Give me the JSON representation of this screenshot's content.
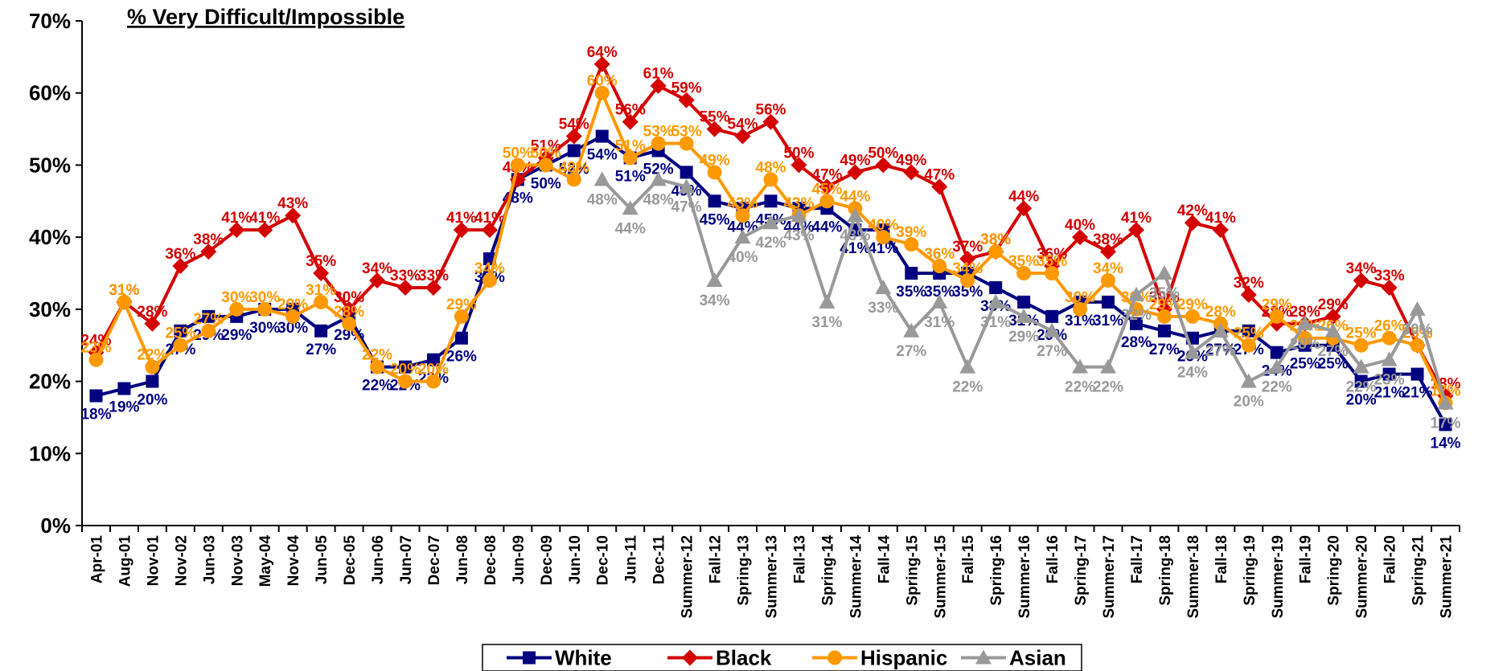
{
  "chart_data": {
    "type": "line",
    "title": "% Very Difficult/Impossible",
    "categories": [
      "Apr-01",
      "Aug-01",
      "Nov-01",
      "Nov-02",
      "Jun-03",
      "Nov-03",
      "May-04",
      "Nov-04",
      "Jun-05",
      "Dec-05",
      "Jun-06",
      "Jun-07",
      "Dec-07",
      "Jun-08",
      "Dec-08",
      "Jun-09",
      "Dec-09",
      "Jun-10",
      "Dec-10",
      "Jun-11",
      "Dec-11",
      "Summer-12",
      "Fall-12",
      "Spring-13",
      "Summer-13",
      "Fall-13",
      "Spring-14",
      "Summer-14",
      "Fall-14",
      "Spring-15",
      "Summer-15",
      "Fall-15",
      "Spring-16",
      "Summer-16",
      "Fall-16",
      "Spring-17",
      "Summer-17",
      "Fall-17",
      "Spring-18",
      "Summer-18",
      "Fall-18",
      "Spring-19",
      "Summer-19",
      "Fall-19",
      "Spring-20",
      "Summer-20",
      "Fall-20",
      "Spring-21",
      "Summer-21"
    ],
    "series": [
      {
        "name": "White",
        "color": "#000080",
        "marker": "square",
        "values": [
          18,
          19,
          20,
          27,
          29,
          29,
          30,
          30,
          27,
          29,
          22,
          22,
          23,
          26,
          37,
          48,
          50,
          52,
          54,
          51,
          52,
          49,
          45,
          44,
          45,
          44,
          44,
          41,
          41,
          35,
          35,
          35,
          33,
          31,
          29,
          31,
          31,
          28,
          27,
          26,
          27,
          27,
          24,
          25,
          25,
          20,
          21,
          21,
          14
        ],
        "value_labels": [
          "18%",
          "19%",
          "20%",
          "27%",
          "29%",
          "29%",
          "30%",
          "30%",
          "27%",
          "29%",
          "22%",
          "22%",
          "23%",
          "26%",
          "37%",
          "48%",
          "50%",
          "52%",
          "54%",
          "51%",
          "52%",
          "49%",
          "45%",
          "44%",
          "45%",
          "44%",
          "44%",
          "41%",
          "41%",
          "35%",
          "35%",
          "35%",
          "33%",
          "31%",
          "29%",
          "31%",
          "31%",
          "28%",
          "27%",
          "26%",
          "27%",
          "27%",
          "24%",
          "25%",
          "25%",
          "20%",
          "21%",
          "21%",
          "14%"
        ]
      },
      {
        "name": "Black",
        "color": "#d40000",
        "marker": "diamond",
        "values": [
          24,
          31,
          28,
          36,
          38,
          41,
          41,
          43,
          35,
          30,
          34,
          33,
          33,
          41,
          41,
          48,
          51,
          54,
          64,
          56,
          61,
          59,
          55,
          54,
          56,
          50,
          47,
          49,
          50,
          49,
          47,
          37,
          38,
          44,
          36,
          40,
          38,
          41,
          30,
          42,
          41,
          32,
          28,
          28,
          29,
          34,
          33,
          25,
          18
        ],
        "value_labels": [
          "24%",
          "31%",
          "28%",
          "36%",
          "38%",
          "41%",
          "41%",
          "43%",
          "35%",
          "30%",
          "34%",
          "33%",
          "33%",
          "41%",
          "41%",
          "48%",
          "51%",
          "54%",
          "64%",
          "56%",
          "61%",
          "59%",
          "55%",
          "54%",
          "56%",
          "50%",
          "47%",
          "49%",
          "50%",
          "49%",
          "47%",
          "37%",
          "38%",
          "44%",
          "36%",
          "40%",
          "38%",
          "41%",
          "30%",
          "42%",
          "41%",
          "32%",
          "28%",
          "28%",
          "29%",
          "34%",
          "33%",
          "25%",
          "18%"
        ]
      },
      {
        "name": "Hispanic",
        "color": "#ff9900",
        "marker": "circle",
        "values": [
          23,
          31,
          22,
          25,
          27,
          30,
          30,
          29,
          31,
          28,
          22,
          20,
          20,
          29,
          34,
          50,
          50,
          48,
          60,
          51,
          53,
          53,
          49,
          43,
          48,
          43,
          45,
          44,
          40,
          39,
          36,
          34,
          38,
          35,
          35,
          30,
          34,
          30,
          29,
          29,
          28,
          25,
          29,
          26,
          26,
          25,
          26,
          25,
          17
        ],
        "value_labels": [
          "23%",
          "31%",
          "22%",
          "25%",
          "27%",
          "30%",
          "30%",
          "29%",
          "31%",
          "28%",
          "22%",
          "20%",
          "20%",
          "29%",
          "34%",
          "50%",
          "50%",
          "48%",
          "60%",
          "51%",
          "53%",
          "53%",
          "49%",
          "43%",
          "48%",
          "43%",
          "45%",
          "44%",
          "40%",
          "39%",
          "36%",
          "34%",
          "38%",
          "35%",
          "35%",
          "30%",
          "34%",
          "30%",
          "29%",
          "29%",
          "28%",
          "25%",
          "29%",
          "26%",
          "26%",
          "25%",
          "26%",
          "25%",
          "17%"
        ]
      },
      {
        "name": "Asian",
        "color": "#999999",
        "marker": "triangle",
        "values": [
          null,
          null,
          null,
          null,
          null,
          null,
          null,
          null,
          null,
          null,
          null,
          null,
          null,
          null,
          null,
          null,
          null,
          null,
          48,
          44,
          48,
          47,
          34,
          40,
          42,
          43,
          31,
          43,
          33,
          27,
          31,
          22,
          31,
          29,
          27,
          22,
          22,
          32,
          35,
          24,
          27,
          20,
          22,
          28,
          27,
          22,
          23,
          30,
          17
        ],
        "value_labels": [
          null,
          null,
          null,
          null,
          null,
          null,
          null,
          null,
          null,
          null,
          null,
          null,
          null,
          null,
          null,
          null,
          null,
          null,
          "48%",
          "44%",
          "48%",
          "47%",
          "34%",
          "40%",
          "42%",
          "43%",
          "31%",
          "43%",
          "33%",
          "27%",
          "31%",
          "22%",
          "31%",
          "29%",
          "27%",
          "22%",
          "22%",
          "32%",
          "35%",
          "24%",
          "27%",
          "20%",
          "22%",
          "28%",
          "27%",
          "22%",
          "23%",
          "30%",
          "17%"
        ]
      }
    ],
    "ylim": [
      0,
      70
    ],
    "yticks": [
      {
        "value": 0,
        "label": "0%"
      },
      {
        "value": 10,
        "label": "10%"
      },
      {
        "value": 20,
        "label": "20%"
      },
      {
        "value": 30,
        "label": "30%"
      },
      {
        "value": 40,
        "label": "40%"
      },
      {
        "value": 50,
        "label": "50%"
      },
      {
        "value": 60,
        "label": "60%"
      },
      {
        "value": 70,
        "label": "70%"
      }
    ],
    "grid": false,
    "legend": "bottom"
  }
}
